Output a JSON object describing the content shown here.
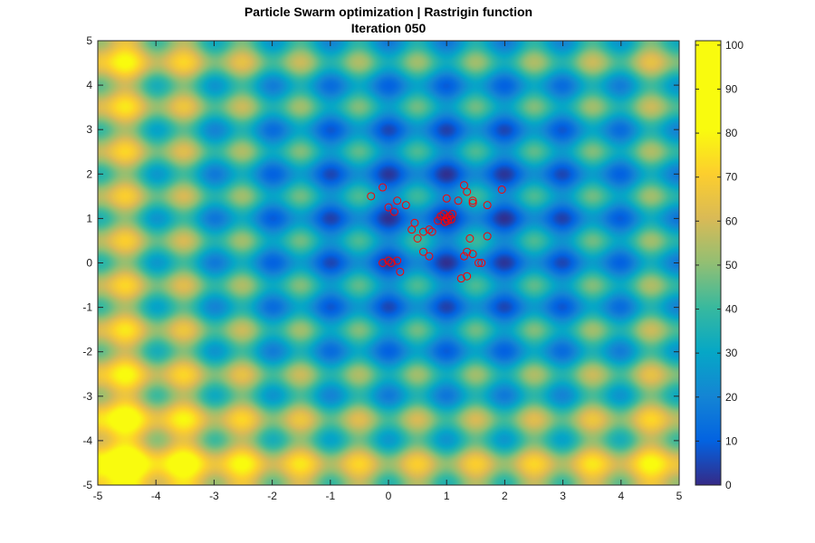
{
  "chart_data": {
    "type": "heatmap",
    "title": "Particle Swarm optimization | Rastrigin function",
    "subtitle": "Iteration 050",
    "xlim": [
      -5,
      5
    ],
    "ylim": [
      -5,
      5
    ],
    "x_ticks": [
      -5,
      -4,
      -3,
      -2,
      -1,
      0,
      1,
      2,
      3,
      4,
      5
    ],
    "y_ticks": [
      -5,
      -4,
      -3,
      -2,
      -1,
      0,
      1,
      2,
      3,
      4,
      5
    ],
    "colorbar": {
      "range": [
        0,
        101
      ],
      "ticks": [
        0,
        10,
        20,
        30,
        40,
        50,
        60,
        70,
        80,
        90,
        100
      ],
      "colormap": "parula"
    },
    "surface": {
      "function": "rastrigin",
      "x_offset": 1,
      "y_offset": 1
    },
    "particles": {
      "marker": "circle",
      "color": "#ff0000",
      "points": [
        [
          -0.3,
          1.5
        ],
        [
          -0.1,
          1.7
        ],
        [
          0.0,
          1.25
        ],
        [
          0.1,
          1.15
        ],
        [
          0.15,
          1.4
        ],
        [
          0.3,
          1.3
        ],
        [
          0.4,
          0.75
        ],
        [
          0.45,
          0.9
        ],
        [
          0.5,
          0.55
        ],
        [
          0.6,
          0.7
        ],
        [
          0.7,
          0.75
        ],
        [
          0.75,
          0.7
        ],
        [
          0.85,
          0.95
        ],
        [
          0.9,
          1.05
        ],
        [
          0.95,
          1.1
        ],
        [
          1.0,
          1.0
        ],
        [
          1.02,
          0.95
        ],
        [
          1.05,
          1.05
        ],
        [
          1.08,
          0.98
        ],
        [
          0.97,
          0.92
        ],
        [
          1.1,
          1.1
        ],
        [
          1.0,
          1.45
        ],
        [
          1.2,
          1.4
        ],
        [
          1.3,
          1.75
        ],
        [
          1.35,
          1.6
        ],
        [
          1.45,
          1.4
        ],
        [
          1.45,
          1.35
        ],
        [
          1.7,
          1.3
        ],
        [
          1.95,
          1.65
        ],
        [
          1.4,
          0.55
        ],
        [
          1.7,
          0.6
        ],
        [
          1.35,
          0.25
        ],
        [
          1.3,
          0.15
        ],
        [
          1.45,
          0.2
        ],
        [
          1.55,
          0.0
        ],
        [
          1.6,
          0.0
        ],
        [
          1.25,
          -0.35
        ],
        [
          1.35,
          -0.3
        ],
        [
          0.6,
          0.25
        ],
        [
          0.7,
          0.15
        ],
        [
          0.0,
          0.05
        ],
        [
          0.05,
          0.0
        ],
        [
          0.2,
          -0.2
        ],
        [
          -0.1,
          0.0
        ],
        [
          0.15,
          0.05
        ]
      ]
    }
  }
}
